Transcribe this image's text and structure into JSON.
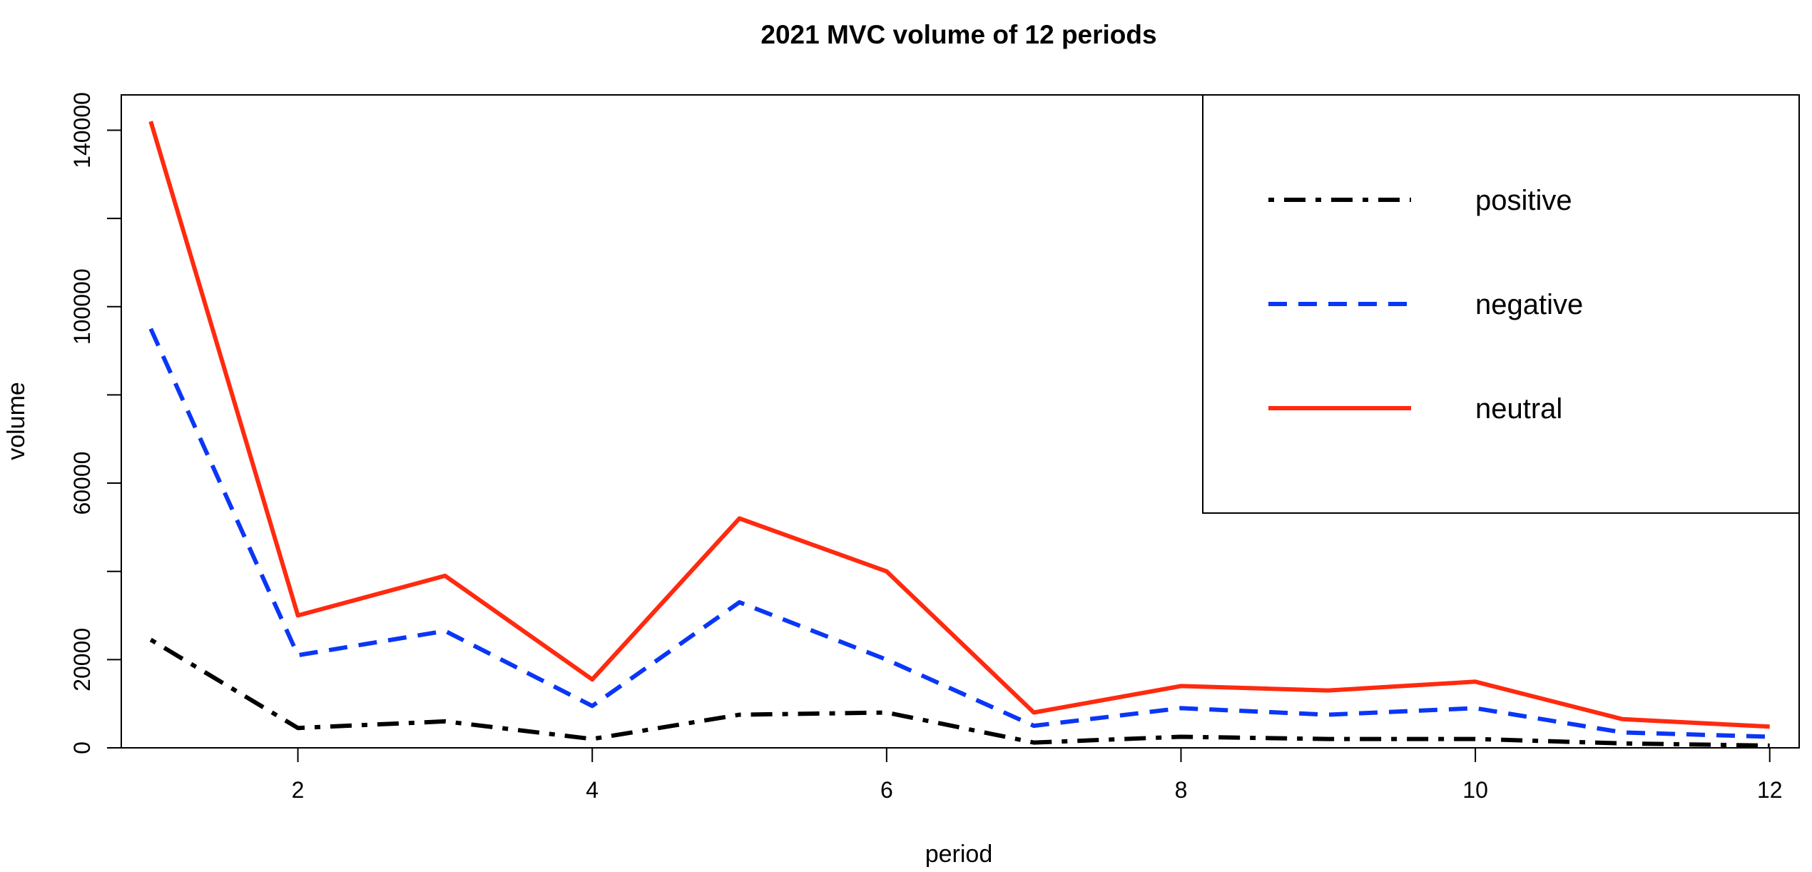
{
  "chart_data": {
    "type": "line",
    "title": "2021 MVC volume of 12 periods",
    "xlabel": "period",
    "ylabel": "volume",
    "x": [
      1,
      2,
      3,
      4,
      5,
      6,
      7,
      8,
      9,
      10,
      11,
      12
    ],
    "xlim": [
      0.8,
      12.2
    ],
    "ylim": [
      0,
      148000
    ],
    "x_ticks": [
      2,
      4,
      6,
      8,
      10,
      12
    ],
    "x_tick_labels": [
      "2",
      "4",
      "6",
      "8",
      "10",
      "12"
    ],
    "y_ticks": [
      0,
      20000,
      40000,
      60000,
      80000,
      100000,
      120000,
      140000
    ],
    "y_tick_labels": [
      "0",
      "20000",
      "",
      "60000",
      "",
      "100000",
      "",
      "140000"
    ],
    "grid": false,
    "legend_position": "top-right",
    "series": [
      {
        "name": "positive",
        "color": "#000000",
        "line_style": "dot-dash",
        "values": [
          24500,
          4500,
          6000,
          2000,
          7500,
          8000,
          1200,
          2500,
          2000,
          2000,
          1000,
          500
        ]
      },
      {
        "name": "negative",
        "color": "#0a36f7",
        "line_style": "dashed",
        "values": [
          95000,
          21000,
          26500,
          9500,
          33000,
          20000,
          5000,
          9000,
          7500,
          9000,
          3500,
          2500
        ]
      },
      {
        "name": "neutral",
        "color": "#ff2a0f",
        "line_style": "solid",
        "values": [
          142000,
          30000,
          39000,
          15500,
          52000,
          40000,
          8000,
          14000,
          13000,
          15000,
          6500,
          4800
        ]
      }
    ]
  }
}
